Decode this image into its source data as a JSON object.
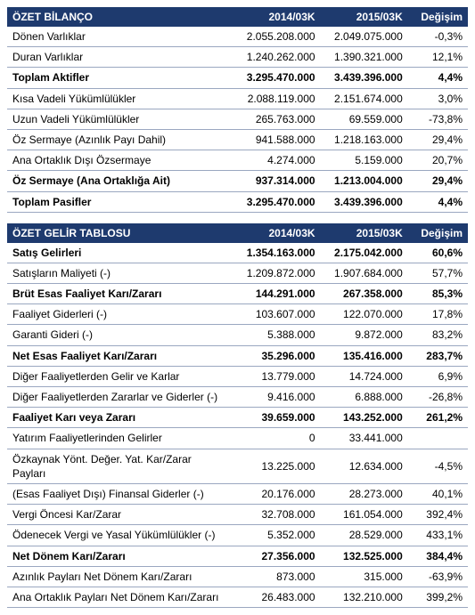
{
  "colors": {
    "header_bg": "#1e3a6e",
    "header_fg": "#ffffff",
    "row_border": "#9aa7c0",
    "text": "#000000",
    "bg": "#ffffff"
  },
  "font_size_pt": 9,
  "columns": {
    "label_pct": 49,
    "v1_pct": 19,
    "v2_pct": 19,
    "chg_pct": 13
  },
  "tables": [
    {
      "type": "table",
      "header": {
        "title": "ÖZET BİLANÇO",
        "col1": "2014/03K",
        "col2": "2015/03K",
        "col3": "Değişim"
      },
      "rows": [
        {
          "label": "Dönen Varlıklar",
          "v1": "2.055.208.000",
          "v2": "2.049.075.000",
          "chg": "-0,3%",
          "bold": false
        },
        {
          "label": "Duran Varlıklar",
          "v1": "1.240.262.000",
          "v2": "1.390.321.000",
          "chg": "12,1%",
          "bold": false
        },
        {
          "label": "Toplam Aktifler",
          "v1": "3.295.470.000",
          "v2": "3.439.396.000",
          "chg": "4,4%",
          "bold": true
        },
        {
          "label": "Kısa Vadeli Yükümlülükler",
          "v1": "2.088.119.000",
          "v2": "2.151.674.000",
          "chg": "3,0%",
          "bold": false
        },
        {
          "label": "Uzun Vadeli Yükümlülükler",
          "v1": "265.763.000",
          "v2": "69.559.000",
          "chg": "-73,8%",
          "bold": false
        },
        {
          "label": "Öz Sermaye (Azınlık Payı Dahil)",
          "v1": "941.588.000",
          "v2": "1.218.163.000",
          "chg": "29,4%",
          "bold": false
        },
        {
          "label": "Ana Ortaklık Dışı Özsermaye",
          "v1": "4.274.000",
          "v2": "5.159.000",
          "chg": "20,7%",
          "bold": false
        },
        {
          "label": "Öz Sermaye (Ana Ortaklığa Ait)",
          "v1": "937.314.000",
          "v2": "1.213.004.000",
          "chg": "29,4%",
          "bold": true
        },
        {
          "label": "Toplam Pasifler",
          "v1": "3.295.470.000",
          "v2": "3.439.396.000",
          "chg": "4,4%",
          "bold": true
        }
      ]
    },
    {
      "type": "table",
      "header": {
        "title": "ÖZET GELİR TABLOSU",
        "col1": "2014/03K",
        "col2": "2015/03K",
        "col3": "Değişim"
      },
      "rows": [
        {
          "label": "Satış Gelirleri",
          "v1": "1.354.163.000",
          "v2": "2.175.042.000",
          "chg": "60,6%",
          "bold": true
        },
        {
          "label": "Satışların Maliyeti (-)",
          "v1": "1.209.872.000",
          "v2": "1.907.684.000",
          "chg": "57,7%",
          "bold": false
        },
        {
          "label": "Brüt Esas Faaliyet Karı/Zararı",
          "v1": "144.291.000",
          "v2": "267.358.000",
          "chg": "85,3%",
          "bold": true
        },
        {
          "label": "Faaliyet Giderleri (-)",
          "v1": "103.607.000",
          "v2": "122.070.000",
          "chg": "17,8%",
          "bold": false
        },
        {
          "label": "Garanti Gideri (-)",
          "v1": "5.388.000",
          "v2": "9.872.000",
          "chg": "83,2%",
          "bold": false
        },
        {
          "label": "Net Esas Faaliyet Karı/Zararı",
          "v1": "35.296.000",
          "v2": "135.416.000",
          "chg": "283,7%",
          "bold": true
        },
        {
          "label": "Diğer Faaliyetlerden Gelir ve Karlar",
          "v1": "13.779.000",
          "v2": "14.724.000",
          "chg": "6,9%",
          "bold": false
        },
        {
          "label": "Diğer Faaliyetlerden Zararlar ve Giderler (-)",
          "v1": "9.416.000",
          "v2": "6.888.000",
          "chg": "-26,8%",
          "bold": false
        },
        {
          "label": "Faaliyet Karı veya Zararı",
          "v1": "39.659.000",
          "v2": "143.252.000",
          "chg": "261,2%",
          "bold": true
        },
        {
          "label": "Yatırım Faaliyetlerinden Gelirler",
          "v1": "0",
          "v2": "33.441.000",
          "chg": "",
          "bold": false
        },
        {
          "label": "Özkaynak Yönt. Değer. Yat. Kar/Zarar Payları",
          "v1": "13.225.000",
          "v2": "12.634.000",
          "chg": "-4,5%",
          "bold": false
        },
        {
          "label": "(Esas Faaliyet Dışı) Finansal Giderler (-)",
          "v1": "20.176.000",
          "v2": "28.273.000",
          "chg": "40,1%",
          "bold": false
        },
        {
          "label": "Vergi Öncesi Kar/Zarar",
          "v1": "32.708.000",
          "v2": "161.054.000",
          "chg": "392,4%",
          "bold": false
        },
        {
          "label": "Ödenecek Vergi ve Yasal Yükümlülükler (-)",
          "v1": "5.352.000",
          "v2": "28.529.000",
          "chg": "433,1%",
          "bold": false
        },
        {
          "label": "Net Dönem Karı/Zararı",
          "v1": "27.356.000",
          "v2": "132.525.000",
          "chg": "384,4%",
          "bold": true
        },
        {
          "label": "Azınlık Payları Net Dönem Karı/Zararı",
          "v1": "873.000",
          "v2": "315.000",
          "chg": "-63,9%",
          "bold": false
        },
        {
          "label": "Ana Ortaklık Payları Net Dönem Karı/Zararı",
          "v1": "26.483.000",
          "v2": "132.210.000",
          "chg": "399,2%",
          "bold": false
        }
      ]
    }
  ]
}
